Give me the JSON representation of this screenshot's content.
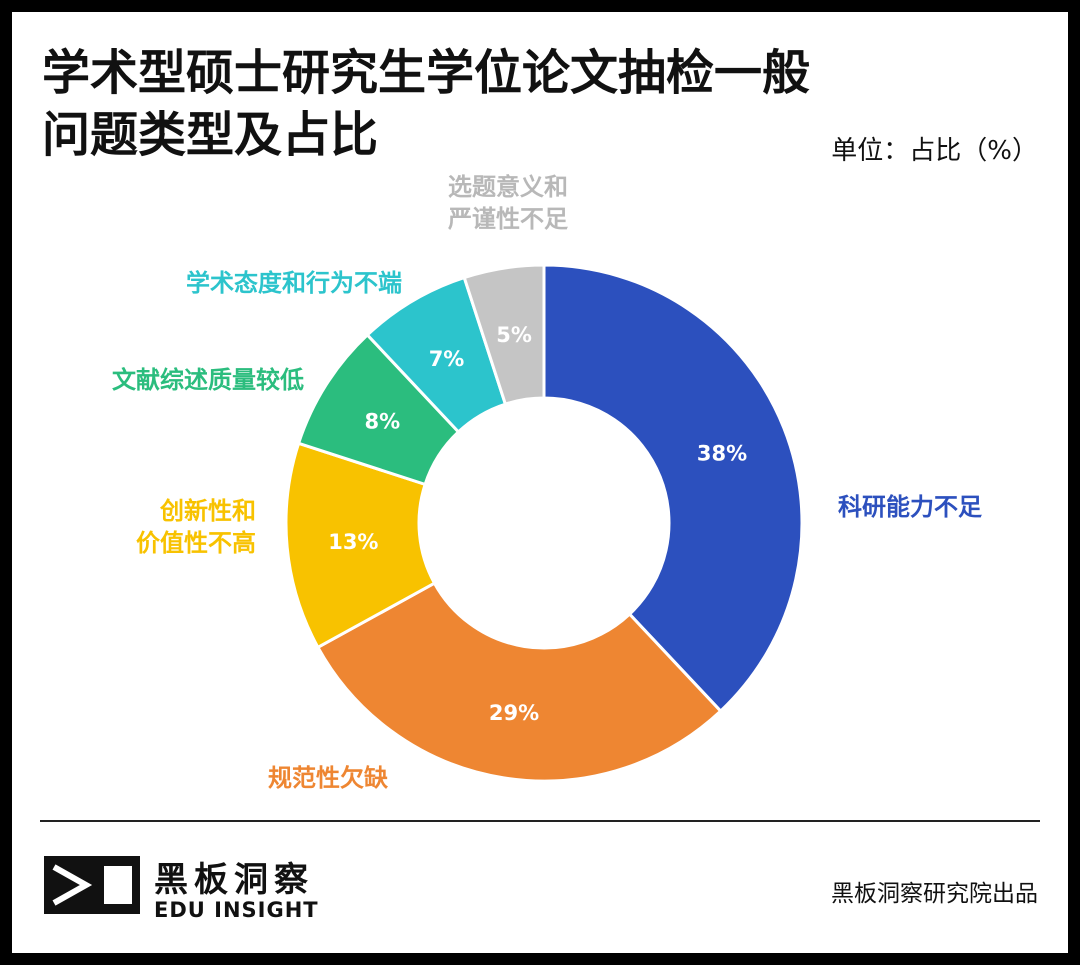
{
  "chart_data": {
    "type": "pie",
    "title_lines": [
      "学术型硕士研究生学位论文抽检一般",
      "问题类型及占比"
    ],
    "unit": "单位：占比（%）",
    "categories": [
      "科研能力不足",
      "规范性欠缺",
      "创新性和价值性不高",
      "文献综述质量较低",
      "学术态度和行为不端",
      "选题意义和严谨性不足"
    ],
    "values": [
      38,
      29,
      13,
      8,
      7,
      5
    ],
    "value_labels": [
      "38%",
      "29%",
      "13%",
      "8%",
      "7%",
      "5%"
    ],
    "category_label_lines": [
      [
        "科研能力不足"
      ],
      [
        "规范性欠缺"
      ],
      [
        "创新性和",
        "价值性不高"
      ],
      [
        "文献综述质量较低"
      ],
      [
        "学术态度和行为不端"
      ],
      [
        "选题意义和",
        "严谨性不足"
      ]
    ],
    "colors": [
      "#2c50be",
      "#ee8632",
      "#f8c200",
      "#2bbd7e",
      "#2cc4cc",
      "#c5c5c5"
    ],
    "legend": "none",
    "grid": false
  },
  "footer": {
    "brand_cn": "黑板洞察",
    "brand_en": "EDU INSIGHT",
    "credit": "黑板洞察研究院出品",
    "logo_icon": "eye-triangle-icon"
  }
}
